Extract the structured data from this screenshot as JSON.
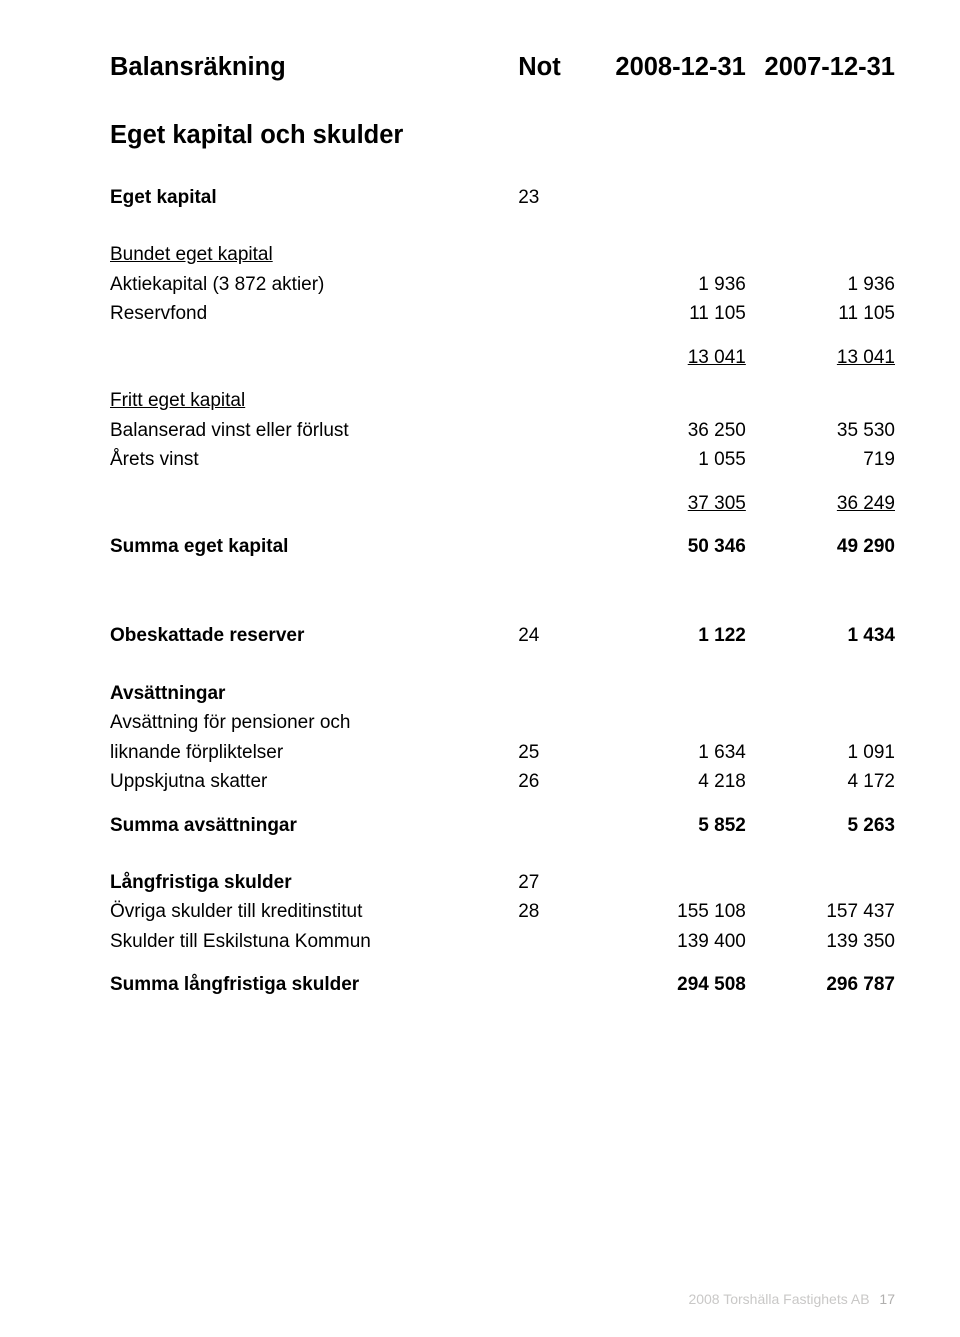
{
  "header": {
    "title": "Balansräkning",
    "col_not": "Not",
    "col_a": "2008-12-31",
    "col_b": "2007-12-31"
  },
  "sections": {
    "eget_kapital_och_skulder": "Eget kapital och skulder",
    "eget_kapital": {
      "label": "Eget kapital",
      "not": "23"
    },
    "bundet_eget_kapital": "Bundet eget kapital",
    "aktiekapital": {
      "label": "Aktiekapital (3 872 aktier)",
      "a": "1 936",
      "b": "1 936"
    },
    "reservfond": {
      "label": "Reservfond",
      "a": "11 105",
      "b": "11 105"
    },
    "sub1": {
      "a": "13 041",
      "b": "13 041"
    },
    "fritt_eget_kapital": "Fritt eget kapital",
    "balanserad": {
      "label": "Balanserad vinst eller förlust",
      "a": "36 250",
      "b": "35 530"
    },
    "arets_vinst": {
      "label": "Årets vinst",
      "a": "1 055",
      "b": "719"
    },
    "sub2": {
      "a": "37 305",
      "b": "36 249"
    },
    "summa_eget": {
      "label": "Summa eget kapital",
      "a": "50 346",
      "b": "49 290"
    },
    "obeskattade": {
      "label": "Obeskattade reserver",
      "not": "24",
      "a": "1 122",
      "b": "1 434"
    },
    "avsattningar_h": "Avsättningar",
    "avs_line1": "Avsättning för pensioner och",
    "avs_line2": {
      "label": "liknande förpliktelser",
      "not": "25",
      "a": "1 634",
      "b": "1 091"
    },
    "uppskjutna": {
      "label": "Uppskjutna skatter",
      "not": "26",
      "a": "4 218",
      "b": "4 172"
    },
    "summa_avs": {
      "label": "Summa avsättningar",
      "a": "5 852",
      "b": "5 263"
    },
    "lang_skulder": {
      "label": "Långfristiga skulder",
      "not": "27"
    },
    "ovriga": {
      "label": "Övriga skulder till kreditinstitut",
      "not": "28",
      "a": "155 108",
      "b": "157 437"
    },
    "eskilstuna": {
      "label": "Skulder till Eskilstuna Kommun",
      "a": "139 400",
      "b": "139 350"
    },
    "summa_lang": {
      "label": "Summa långfristiga skulder",
      "a": "294 508",
      "b": "296 787"
    }
  },
  "footer": {
    "text": "2008 Torshälla Fastighets AB",
    "page": "17"
  }
}
